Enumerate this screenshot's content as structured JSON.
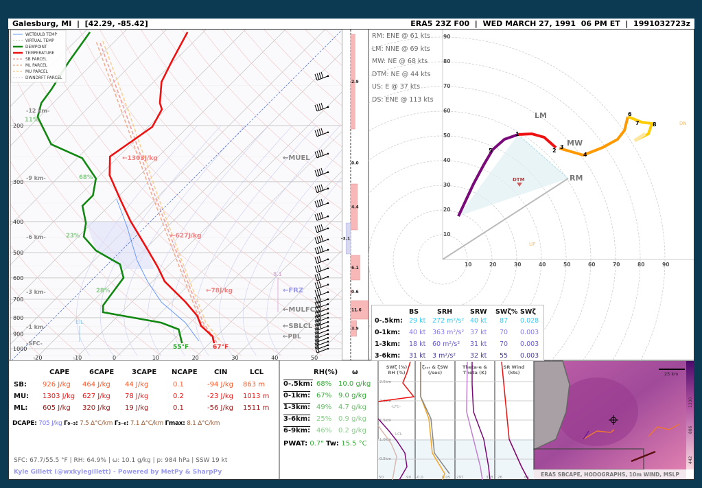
{
  "header": {
    "location": "Galesburg, MI  |  [42.29, -85.42]",
    "run": "ERA5 23Z F00  |  WED MARCH 27, 1991  06 PM ET  |  1991032723z"
  },
  "legend": [
    "WETBULB TEMP",
    "VIRTUAL TEMP",
    "DEWPOINT",
    "TEMPERATURE",
    "SB PARCEL",
    "ML PARCEL",
    "MU PARCEL",
    "DWNDRFT PARCEL"
  ],
  "colors": {
    "temperature": "#ee1111",
    "dewpoint": "#118811",
    "sb": "#f4a0a0",
    "ml": "#f0b090",
    "mu": "#f8d090",
    "wetbulb": "#6699ff",
    "hodo_low": "#7a0a7a",
    "hodo_mid": "#ee1111",
    "hodo_high": "#ff9900",
    "hodo_top": "#ffcc00"
  },
  "chart_data": {
    "type": "line",
    "title": "Skew-T log-P sounding",
    "xlabel": "Temperature (°C)",
    "ylabel": "Pressure (hPa)",
    "pressure_ticks": [
      200,
      300,
      400,
      500,
      600,
      700,
      800,
      900,
      1000
    ],
    "temp_ticks": [
      -20,
      -10,
      0,
      10,
      20,
      30,
      40,
      50
    ],
    "series": [
      {
        "name": "TEMPERATURE",
        "p": [
          961,
          915,
          849,
          788,
          714,
          616,
          557,
          481,
          398,
          340,
          286,
          250,
          202,
          178,
          170,
          146,
          126,
          102
        ],
        "t": [
          21.1,
          19.0,
          13.5,
          9.9,
          3.5,
          -6.9,
          -12.1,
          -20.2,
          -30.8,
          -38.9,
          -47.6,
          -52.2,
          -49.0,
          -51.0,
          -53.1,
          -58.0,
          -60.6,
          -64.0
        ]
      },
      {
        "name": "DEWPOINT",
        "p": [
          961,
          870,
          829,
          769,
          732,
          663,
          600,
          544,
          493,
          446,
          404,
          357,
          331,
          293,
          253,
          229,
          188,
          170,
          154,
          126,
          102
        ],
        "t": [
          13.0,
          8.7,
          2.6,
          -14.7,
          -16.4,
          -17.3,
          -18.2,
          -22.5,
          -32.0,
          -38.6,
          -41.5,
          -46.7,
          -46.7,
          -50.2,
          -58.8,
          -70.1,
          -80.4,
          -83.0,
          -83.9,
          -86.5,
          -88.6
        ]
      }
    ],
    "annotations": {
      "cape_mu": "←1303J/kg",
      "cape_6": "←627J/kg",
      "cape_3": "←78J/kg",
      "muel": "←MUEL",
      "frz": "←FRZ",
      "mulfc": "←MULFC",
      "sblcl": "←SBLCL",
      "pbl": "←PBL",
      "sfc_td": "55°F",
      "sfc_t": "67°F",
      "eil": "EIL",
      "val81": "8.1"
    },
    "heights": [
      "-12 km-",
      "-9 km-",
      "-6 km-",
      "-3 km-",
      "-1 km-",
      "-SFC-"
    ],
    "rh_labels": [
      "11%",
      "68%",
      "23%",
      "28%"
    ],
    "layer_bars": [
      {
        "label": "2.9",
        "value": 2.9
      },
      {
        "label": "0.0",
        "value": 0.0
      },
      {
        "label": "4.4",
        "value": 4.4
      },
      {
        "label": "-3.1",
        "value": -3.1
      },
      {
        "label": "6.1",
        "value": 6.1
      },
      {
        "label": "0.6",
        "value": 0.6
      },
      {
        "label": "11.6",
        "value": 11.6
      },
      {
        "label": "3.9",
        "value": 3.9
      }
    ]
  },
  "hodograph": {
    "motions": [
      "RM: ENE @ 61 kts",
      "LM: NNE @ 69 kts",
      "MW: NE @ 68 kts",
      "DTM: NE @ 44 kts",
      "US: E @ 37 kts",
      "DS: ENE @ 113 kts"
    ],
    "rings": [
      "10",
      "20",
      "30",
      "40",
      "50",
      "60",
      "70",
      "80",
      "90"
    ],
    "markers": {
      "lm": "LM",
      "mw": "MW",
      "rm": "RM",
      "dtm": "DTM",
      "dn": "DN",
      "up": "UP"
    },
    "points": [
      "1",
      "2",
      "3",
      "4",
      "5",
      "6",
      "7",
      "8"
    ]
  },
  "kinematics": {
    "headers": [
      "BS",
      "SRH",
      "SRW",
      "SWζ%",
      "SWζ"
    ],
    "rows": [
      {
        "layer": "0-.5km:",
        "bs": "29 kt",
        "srh": "272 m²/s²",
        "srw": "40 kt",
        "swp": "87",
        "sw": "0.028",
        "color": "#33ccff"
      },
      {
        "layer": "0-1km:",
        "bs": "40 kt",
        "srh": "363 m²/s²",
        "srw": "37 kt",
        "swp": "70",
        "sw": "0.003",
        "color": "#8877ee"
      },
      {
        "layer": "1-3km:",
        "bs": "18 kt",
        "srh": "60 m²/s²",
        "srw": "31 kt",
        "swp": "70",
        "sw": "0.003",
        "color": "#6a5acd"
      },
      {
        "layer": "3-6km:",
        "bs": "31 kt",
        "srh": "3 m²/s²",
        "srw": "32 kt",
        "swp": "55",
        "sw": "0.003",
        "color": "#4b3c9a"
      }
    ]
  },
  "thermo": {
    "headers": [
      "CAPE",
      "6CAPE",
      "3CAPE",
      "NCAPE",
      "CIN",
      "LCL"
    ],
    "rows": [
      {
        "label": "SB:",
        "v": [
          "926 J/kg",
          "464 J/kg",
          "44 J/kg",
          "0.1",
          "-94 J/kg",
          "863 m"
        ],
        "color": "#ff5522"
      },
      {
        "label": "MU:",
        "v": [
          "1303 J/kg",
          "627 J/kg",
          "78 J/kg",
          "0.2",
          "-23 J/kg",
          "1013 m"
        ],
        "color": "#ee1111"
      },
      {
        "label": "ML:",
        "v": [
          "605 J/kg",
          "320 J/kg",
          "19 J/kg",
          "0.1",
          "-56 J/kg",
          "1511 m"
        ],
        "color": "#a01818"
      }
    ],
    "dcape_label": "DCAPE:",
    "dcape": "705 J/kg",
    "lr03_label": "Γ₀₋₃:",
    "lr03": "7.5 Δ°C/km",
    "lr36_label": "Γ₃₋₆:",
    "lr36": "7.1 Δ°C/km",
    "lrmax_label": "Γmax:",
    "lrmax": "8.1 Δ°C/km",
    "surface": "SFC: 67.7/55.5 °F | RH: 64.9% | ω: 10.1 g/kg | p: 984 hPa | SSW 19 kt",
    "credit": "Kyle Gillett (@wxkylegillett) - Powered by MetPy & SharpPy"
  },
  "moisture": {
    "headers": [
      "RH(%)",
      "ω"
    ],
    "rows": [
      {
        "layer": "0-.5km:",
        "rh": "68%",
        "w": "10.0 g/kg"
      },
      {
        "layer": "0-1km:",
        "rh": "67%",
        "w": "9.0 g/kg"
      },
      {
        "layer": "1-3km:",
        "rh": "49%",
        "w": "4.7 g/kg"
      },
      {
        "layer": "3-6km:",
        "rh": "25%",
        "w": "0.9 g/kg"
      },
      {
        "layer": "6-9km:",
        "rh": "46%",
        "w": "0.2 g/kg"
      }
    ],
    "pwat_label": "PWAT:",
    "pwat": "0.7\"",
    "tw_label": "Tw:",
    "tw": "15.5 °C"
  },
  "panels": {
    "titles": [
      "SWζ (%)\nRH (%)",
      "ζₜₒₜ & ζSW\n(/sec)",
      "Theta-e &\nTheta (K)",
      "SR Wind\n(kts)"
    ],
    "heights": [
      "2.5km",
      "2.0km",
      "1.5km",
      "1.0km",
      "0.5km"
    ],
    "lfc": "-LFC-",
    "lcl": "LCL",
    "ticks": [
      "50",
      "90",
      "-0.0",
      "0.05",
      "297",
      "328",
      "26",
      "66"
    ]
  },
  "map": {
    "caption": "ERA5 SBCAPE, HODOGRAPHS, 10m WIND, MSLP",
    "scale": "25 km",
    "colorbar": [
      "1330",
      "886",
      "442"
    ]
  }
}
